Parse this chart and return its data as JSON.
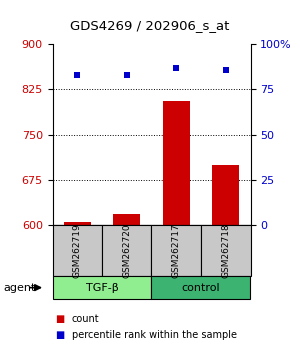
{
  "title": "GDS4269 / 202906_s_at",
  "samples": [
    "GSM262719",
    "GSM262720",
    "GSM262717",
    "GSM262718"
  ],
  "group_labels": [
    "TGF-β",
    "control"
  ],
  "group_color_tgf": "#90EE90",
  "group_color_ctrl": "#3CB371",
  "bar_values": [
    604,
    618,
    806,
    700
  ],
  "bar_color": "#CC0000",
  "dot_values": [
    83,
    83,
    87,
    86
  ],
  "dot_color": "#0000CC",
  "ylim_left": [
    600,
    900
  ],
  "ylim_right": [
    0,
    100
  ],
  "yticks_left": [
    600,
    675,
    750,
    825,
    900
  ],
  "yticks_right": [
    0,
    25,
    50,
    75,
    100
  ],
  "ytick_labels_right": [
    "0",
    "25",
    "50",
    "75",
    "100%"
  ],
  "grid_values": [
    675,
    750,
    825
  ],
  "sample_box_color": "#C8C8C8",
  "legend_count_color": "#CC0000",
  "legend_pct_color": "#0000CC",
  "agent_label": "agent",
  "bar_width": 0.55
}
